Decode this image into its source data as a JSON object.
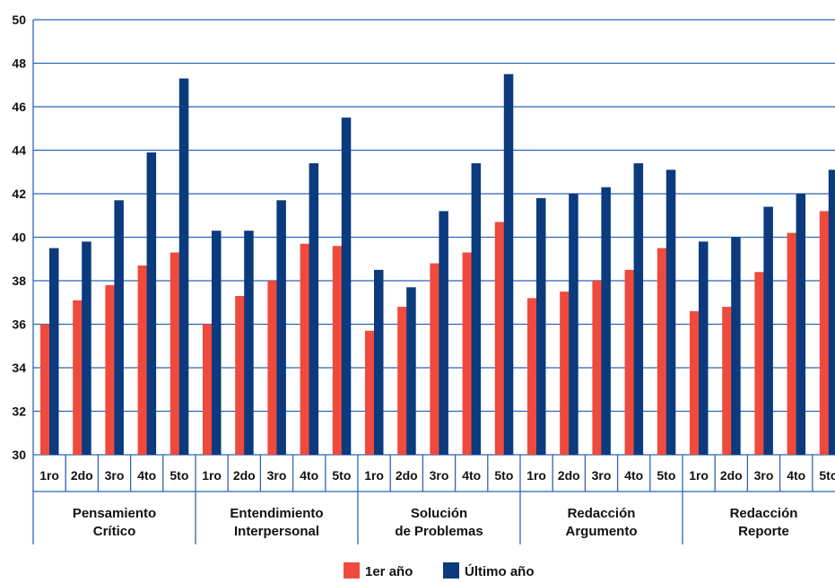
{
  "chart_data": {
    "type": "bar",
    "ylim": [
      30,
      50
    ],
    "yticks": [
      30,
      32,
      34,
      36,
      38,
      40,
      42,
      44,
      46,
      48,
      50
    ],
    "grid": true,
    "legend_position": "bottom-center",
    "colors": {
      "series1": "#f04a3c",
      "series2": "#0b3a7e",
      "axis": "#2a66b8"
    },
    "groups": [
      {
        "label_lines": [
          "Pensamiento",
          "Crítico"
        ],
        "categories": [
          "1ro",
          "2do",
          "3ro",
          "4to",
          "5to"
        ],
        "series1": [
          36.0,
          37.1,
          37.8,
          38.7,
          39.3
        ],
        "series2": [
          39.5,
          39.8,
          41.7,
          43.9,
          47.3
        ]
      },
      {
        "label_lines": [
          "Entendimiento",
          "Interpersonal"
        ],
        "categories": [
          "1ro",
          "2do",
          "3ro",
          "4to",
          "5to"
        ],
        "series1": [
          36.0,
          37.3,
          38.0,
          39.7,
          39.6
        ],
        "series2": [
          40.3,
          40.3,
          41.7,
          43.4,
          45.5
        ]
      },
      {
        "label_lines": [
          "Solución",
          "de Problemas"
        ],
        "categories": [
          "1ro",
          "2do",
          "3ro",
          "4to",
          "5to"
        ],
        "series1": [
          35.7,
          36.8,
          38.8,
          39.3,
          40.7
        ],
        "series2": [
          38.5,
          37.7,
          41.2,
          43.4,
          47.5
        ]
      },
      {
        "label_lines": [
          "Redacción",
          "Argumento"
        ],
        "categories": [
          "1ro",
          "2do",
          "3ro",
          "4to",
          "5to"
        ],
        "series1": [
          37.2,
          37.5,
          38.0,
          38.5,
          39.5
        ],
        "series2": [
          41.8,
          42.0,
          42.3,
          43.4,
          43.1
        ]
      },
      {
        "label_lines": [
          "Redacción",
          "Reporte"
        ],
        "categories": [
          "1ro",
          "2do",
          "3ro",
          "4to",
          "5to"
        ],
        "series1": [
          36.6,
          36.8,
          38.4,
          40.2,
          41.2
        ],
        "series2": [
          39.8,
          40.0,
          41.4,
          42.0,
          43.1
        ]
      }
    ],
    "series": [
      {
        "name": "1er año",
        "key": "series1"
      },
      {
        "name": "Último año",
        "key": "series2"
      }
    ]
  }
}
